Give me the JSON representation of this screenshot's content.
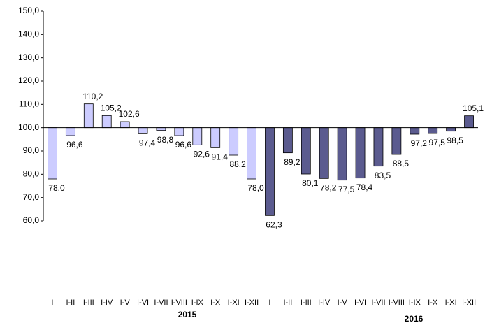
{
  "chart_data": {
    "type": "bar",
    "categories": [
      "I",
      "I-II",
      "I-III",
      "I-IV",
      "I-V",
      "I-VI",
      "I-VII",
      "I-VIII",
      "I-IX",
      "I-X",
      "I-XI",
      "I-XII"
    ],
    "series": [
      {
        "name": "2015",
        "color": "#ccccff",
        "values": [
          78.0,
          96.6,
          110.2,
          105.2,
          102.6,
          97.4,
          98.8,
          96.6,
          92.6,
          91.4,
          88.2,
          78.0
        ],
        "value_labels": [
          "78,0",
          "96,6",
          "110,2",
          "105,2",
          "102,6",
          "97,4",
          "98,8",
          "96,6",
          "92,6",
          "91,4",
          "88,2",
          "78,0"
        ]
      },
      {
        "name": "2016",
        "color": "#5b5b8f",
        "values": [
          62.3,
          89.2,
          80.1,
          78.2,
          77.5,
          78.4,
          83.5,
          88.5,
          97.2,
          97.5,
          98.5,
          105.1
        ],
        "value_labels": [
          "62,3",
          "89,2",
          "80,1",
          "78,2",
          "77,5",
          "78,4",
          "83,5",
          "88,5",
          "97,2",
          "97,5",
          "98,5",
          "105,1"
        ]
      }
    ],
    "baseline": 100,
    "ylim": [
      60,
      150
    ],
    "yticks": [
      {
        "value": 60,
        "label": "60,0"
      },
      {
        "value": 70,
        "label": "70,0"
      },
      {
        "value": 80,
        "label": "80,0"
      },
      {
        "value": 90,
        "label": "90,0"
      },
      {
        "value": 100,
        "label": "100,0"
      },
      {
        "value": 110,
        "label": "110,0"
      },
      {
        "value": 120,
        "label": "120,0"
      },
      {
        "value": 130,
        "label": "130,0"
      },
      {
        "value": 140,
        "label": "140,0"
      },
      {
        "value": 150,
        "label": "150,0"
      }
    ],
    "grid": false
  }
}
